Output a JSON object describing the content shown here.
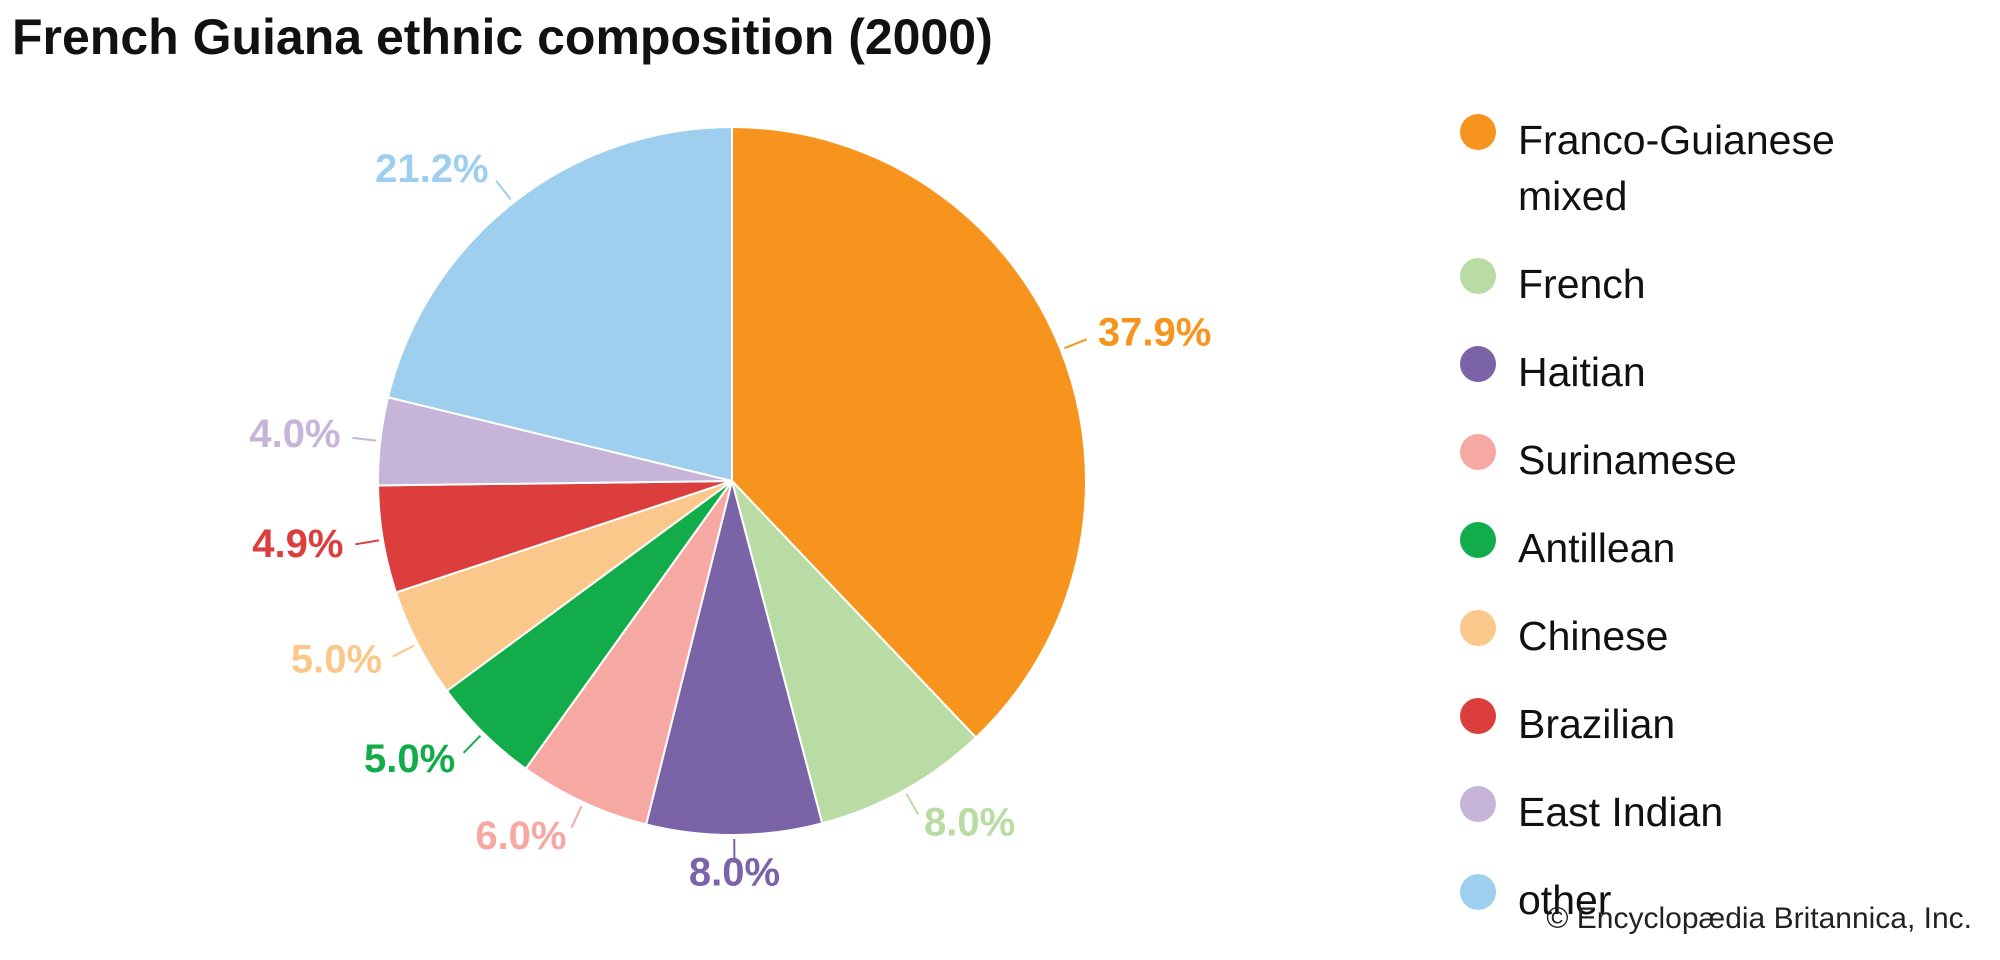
{
  "chart_data": {
    "type": "pie",
    "title": "French Guiana ethnic composition (2000)",
    "categories": [
      "Franco-Guianese mixed",
      "French",
      "Haitian",
      "Surinamese",
      "Antillean",
      "Chinese",
      "Brazilian",
      "East Indian",
      "other"
    ],
    "values": [
      37.9,
      8.0,
      8.0,
      6.0,
      5.0,
      5.0,
      4.9,
      4.0,
      21.2
    ],
    "value_labels": [
      "37.9%",
      "8.0%",
      "8.0%",
      "6.0%",
      "5.0%",
      "5.0%",
      "4.9%",
      "4.0%",
      "21.2%"
    ],
    "colors": [
      "#f7941e",
      "#b8dca4",
      "#7b63a8",
      "#f6a8a3",
      "#12ad4a",
      "#f9c88a",
      "#dc3e3e",
      "#c6b5d9",
      "#9ecfef"
    ],
    "legend": "right",
    "credit": "© Encyclopædia Britannica, Inc."
  }
}
